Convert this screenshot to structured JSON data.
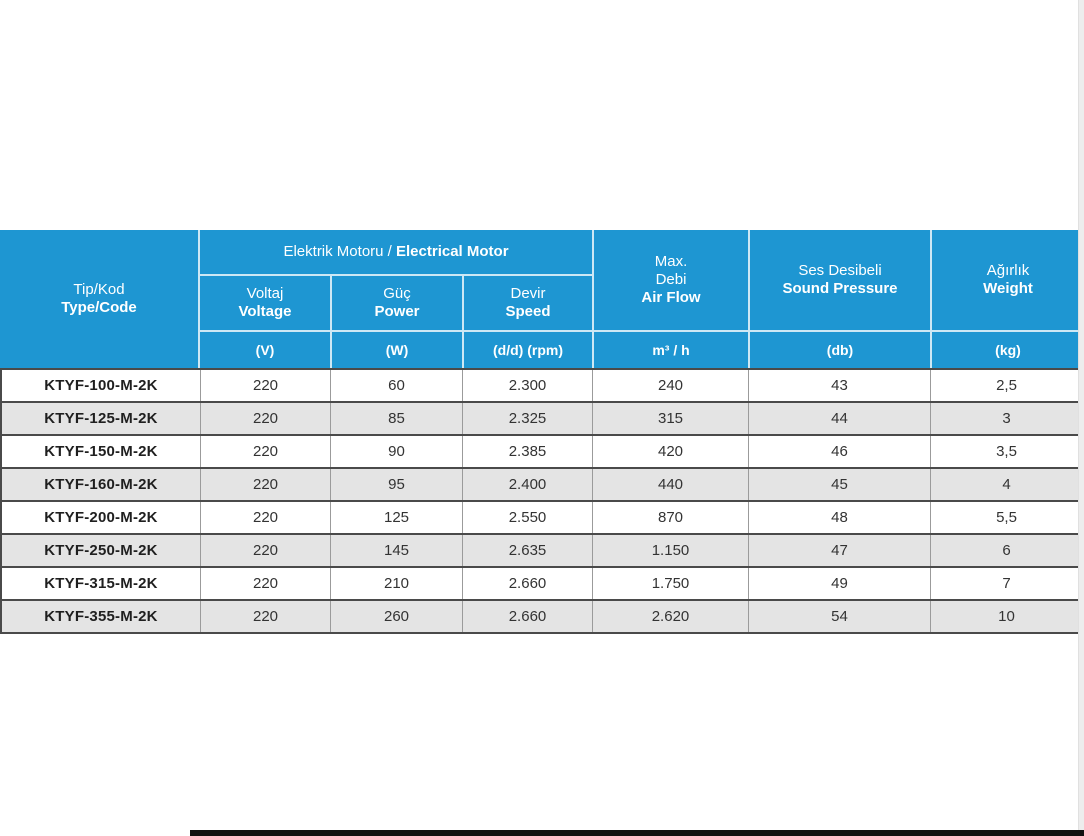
{
  "colors": {
    "header_blue": "#1E96D2",
    "header_separator": "#BFE3F5",
    "zebra_gray": "#E4E4E4",
    "row_border_dark": "#4A4A4A",
    "col_border_gray": "#9B9B9B",
    "text_dark": "#333333"
  },
  "table": {
    "type_code": {
      "tr": "Tip/Kod",
      "en": "Type/Code"
    },
    "motor_group": {
      "tr": "Elektrik Motoru / ",
      "en": "Electrical Motor"
    },
    "voltage": {
      "tr": "Voltaj",
      "en": "Voltage",
      "unit": "(V)"
    },
    "power": {
      "tr": "Güç",
      "en": "Power",
      "unit": "(W)"
    },
    "speed": {
      "tr": "Devir",
      "en": "Speed",
      "unit": "(d/d) (rpm)"
    },
    "airflow": {
      "tr1": "Max.",
      "tr2": "Debi",
      "en": "Air Flow",
      "unit": "m³ / h"
    },
    "sound": {
      "tr": "Ses Desibeli",
      "en": "Sound Pressure",
      "unit": "(db)"
    },
    "weight": {
      "tr": "Ağırlık",
      "en": "Weight",
      "unit": "(kg)"
    },
    "rows": [
      {
        "code": "KTYF-100-M-2K",
        "voltage": "220",
        "power": "60",
        "speed": "2.300",
        "airflow": "240",
        "sound": "43",
        "weight": "2,5"
      },
      {
        "code": "KTYF-125-M-2K",
        "voltage": "220",
        "power": "85",
        "speed": "2.325",
        "airflow": "315",
        "sound": "44",
        "weight": "3"
      },
      {
        "code": "KTYF-150-M-2K",
        "voltage": "220",
        "power": "90",
        "speed": "2.385",
        "airflow": "420",
        "sound": "46",
        "weight": "3,5"
      },
      {
        "code": "KTYF-160-M-2K",
        "voltage": "220",
        "power": "95",
        "speed": "2.400",
        "airflow": "440",
        "sound": "45",
        "weight": "4"
      },
      {
        "code": "KTYF-200-M-2K",
        "voltage": "220",
        "power": "125",
        "speed": "2.550",
        "airflow": "870",
        "sound": "48",
        "weight": "5,5"
      },
      {
        "code": "KTYF-250-M-2K",
        "voltage": "220",
        "power": "145",
        "speed": "2.635",
        "airflow": "1.150",
        "sound": "47",
        "weight": "6"
      },
      {
        "code": "KTYF-315-M-2K",
        "voltage": "220",
        "power": "210",
        "speed": "2.660",
        "airflow": "1.750",
        "sound": "49",
        "weight": "7"
      },
      {
        "code": "KTYF-355-M-2K",
        "voltage": "220",
        "power": "260",
        "speed": "2.660",
        "airflow": "2.620",
        "sound": "54",
        "weight": "10"
      }
    ]
  }
}
